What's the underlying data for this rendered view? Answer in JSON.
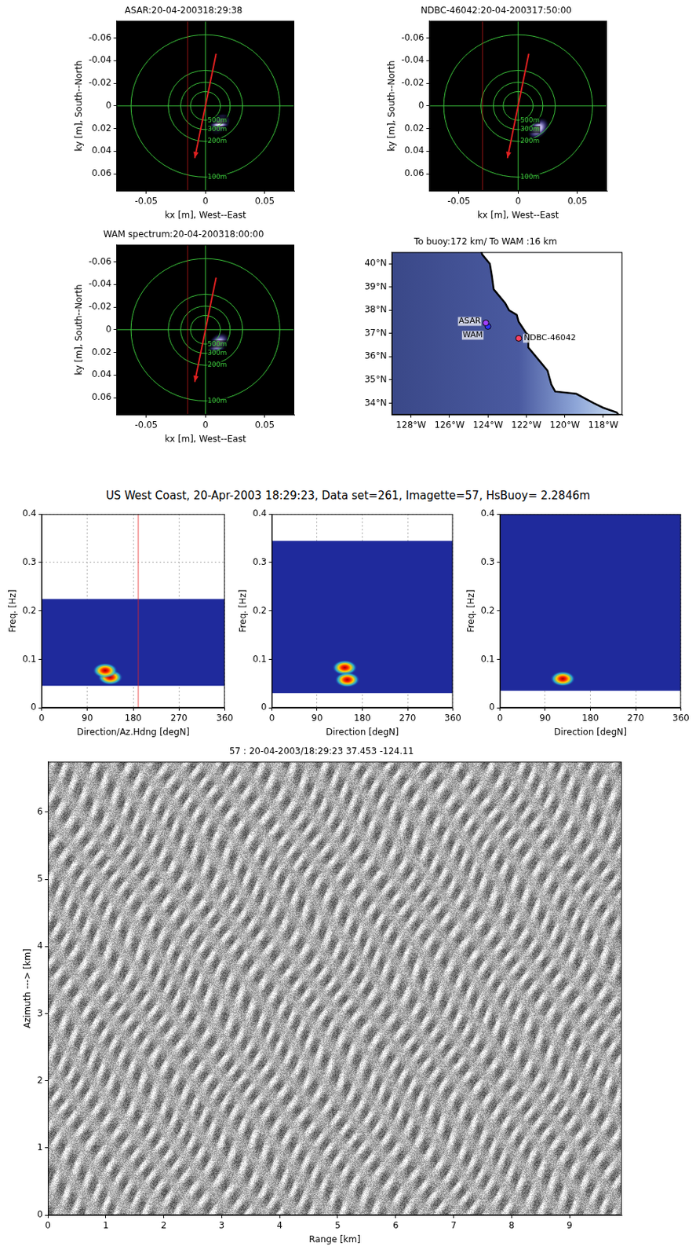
{
  "suptitle": "US West Coast, 20-Apr-2003 18:29:23, Data set=261, Imagette=57, HsBuoy= 2.2846m",
  "chart_data": [
    {
      "type": "spectrum2d",
      "title": "ASAR:20-04-200318:29:38",
      "xlabel": "kx [m], West--East",
      "ylabel": "ky [m], South--North",
      "xlim": [
        -0.075,
        0.075
      ],
      "ylim": [
        0.075,
        -0.075
      ],
      "xticks": [
        -0.05,
        0,
        0.05
      ],
      "yticks": [
        -0.06,
        -0.04,
        -0.02,
        0,
        0.02,
        0.04,
        0.06
      ],
      "grid": false,
      "circles": [
        {
          "radius": 0.0126,
          "label": "500m"
        },
        {
          "radius": 0.0209,
          "label": "300m"
        },
        {
          "radius": 0.0314,
          "label": "200m"
        },
        {
          "radius": 0.0628,
          "label": "100m"
        }
      ],
      "peaks": [
        {
          "x": 0.012,
          "y": 0.016
        }
      ],
      "arrow": {
        "x": [
          0.009,
          -0.009
        ],
        "y": [
          -0.046,
          0.046
        ],
        "color": "#e02020"
      },
      "line_x": -0.015
    },
    {
      "type": "spectrum2d",
      "title": "NDBC-46042:20-04-200317:50:00",
      "xlabel": "kx [m], West--East",
      "ylabel": "ky [m], South--North",
      "xlim": [
        -0.075,
        0.075
      ],
      "ylim": [
        0.075,
        -0.075
      ],
      "xticks": [
        -0.05,
        0,
        0.05
      ],
      "yticks": [
        -0.06,
        -0.04,
        -0.02,
        0,
        0.02,
        0.04,
        0.06
      ],
      "grid": false,
      "circles": [
        {
          "radius": 0.0126,
          "label": "500m"
        },
        {
          "radius": 0.0209,
          "label": "300m"
        },
        {
          "radius": 0.0314,
          "label": "200m"
        },
        {
          "radius": 0.0628,
          "label": "100m"
        }
      ],
      "peaks": [
        {
          "x": 0.017,
          "y": 0.02
        }
      ],
      "arrow": {
        "x": [
          0.009,
          -0.009
        ],
        "y": [
          -0.046,
          0.046
        ],
        "color": "#e02020"
      },
      "line_x": -0.03
    },
    {
      "type": "spectrum2d",
      "title": "WAM spectrum:20-04-200318:00:00",
      "xlabel": "kx [m], West--East",
      "ylabel": "ky [m], South--North",
      "xlim": [
        -0.075,
        0.075
      ],
      "ylim": [
        0.075,
        -0.075
      ],
      "xticks": [
        -0.05,
        0,
        0.05
      ],
      "yticks": [
        -0.06,
        -0.04,
        -0.02,
        0,
        0.02,
        0.04,
        0.06
      ],
      "grid": false,
      "circles": [
        {
          "radius": 0.0126,
          "label": "500m"
        },
        {
          "radius": 0.0209,
          "label": "300m"
        },
        {
          "radius": 0.0314,
          "label": "200m"
        },
        {
          "radius": 0.0628,
          "label": "100m"
        }
      ],
      "peaks": [
        {
          "x": 0.011,
          "y": 0.012
        }
      ],
      "arrow": {
        "x": [
          0.009,
          -0.009
        ],
        "y": [
          -0.046,
          0.046
        ],
        "color": "#e02020"
      },
      "line_x": -0.015
    },
    {
      "type": "map",
      "title": "To buoy:172 km/ To WAM :16 km",
      "xlim": [
        -129,
        -117
      ],
      "ylim": [
        33.5,
        40.5
      ],
      "xticks": [
        {
          "value": -128,
          "label": "128°W"
        },
        {
          "value": -126,
          "label": "126°W"
        },
        {
          "value": -124,
          "label": "124°W"
        },
        {
          "value": -122,
          "label": "122°W"
        },
        {
          "value": -120,
          "label": "120°W"
        },
        {
          "value": -118,
          "label": "118°W"
        }
      ],
      "yticks": [
        {
          "value": 34,
          "label": "34°N"
        },
        {
          "value": 35,
          "label": "35°N"
        },
        {
          "value": 36,
          "label": "36°N"
        },
        {
          "value": 37,
          "label": "37°N"
        },
        {
          "value": 38,
          "label": "38°N"
        },
        {
          "value": 39,
          "label": "39°N"
        },
        {
          "value": 40,
          "label": "40°N"
        }
      ],
      "grid": false,
      "coastline": {
        "color": "#000000",
        "x": [
          -117.1,
          -117.3,
          -118.0,
          -118.5,
          -119.4,
          -120.5,
          -120.7,
          -120.9,
          -121.3,
          -121.9,
          -121.9,
          -121.8,
          -122.0,
          -122.4,
          -122.5,
          -122.9,
          -123.1,
          -123.7,
          -123.8,
          -123.9,
          -124.3,
          -124.4
        ],
        "y": [
          33.4,
          33.6,
          33.8,
          34.0,
          34.4,
          34.5,
          34.8,
          35.4,
          35.8,
          36.4,
          36.6,
          36.9,
          37.0,
          37.5,
          37.8,
          38.0,
          38.3,
          38.9,
          39.5,
          40.0,
          40.4,
          40.7
        ]
      },
      "points": [
        {
          "name": "NDBC-46042",
          "x": -122.4,
          "y": 36.79,
          "color": "#ff4060"
        },
        {
          "name": "ASAR",
          "x": -124.11,
          "y": 37.453,
          "color": "#a040ff"
        },
        {
          "name": "WAM",
          "x": -124.0,
          "y": 37.3,
          "color": "#3030ff"
        }
      ]
    },
    {
      "type": "spectrum",
      "xlabel": "Direction/Az.Hdng [degN]",
      "ylabel": "Freq. [Hz]",
      "xlim": [
        0,
        360
      ],
      "ylim": [
        0,
        0.4
      ],
      "xticks": [
        0,
        90,
        180,
        270,
        360
      ],
      "yticks": [
        0,
        0.1,
        0.2,
        0.3,
        0.4
      ],
      "grid": true,
      "domain": {
        "x": [
          0,
          360
        ],
        "y": [
          0.045,
          0.225
        ]
      },
      "peaks": [
        {
          "x": 135,
          "y": 0.063
        },
        {
          "x": 125,
          "y": 0.077
        }
      ],
      "line_x": 190
    },
    {
      "type": "spectrum",
      "xlabel": "Direction [degN]",
      "ylabel": "Freq. [Hz]",
      "xlim": [
        0,
        360
      ],
      "ylim": [
        0,
        0.4
      ],
      "xticks": [
        0,
        90,
        180,
        270,
        360
      ],
      "yticks": [
        0,
        0.1,
        0.2,
        0.3,
        0.4
      ],
      "grid": true,
      "domain": {
        "x": [
          0,
          360
        ],
        "y": [
          0.03,
          0.345
        ]
      },
      "peaks": [
        {
          "x": 145,
          "y": 0.083
        },
        {
          "x": 150,
          "y": 0.058
        }
      ]
    },
    {
      "type": "spectrum",
      "xlabel": "Direction [degN]",
      "ylabel": "Freq. [Hz]",
      "xlim": [
        0,
        360
      ],
      "ylim": [
        0,
        0.4
      ],
      "xticks": [
        0,
        90,
        180,
        270,
        360
      ],
      "yticks": [
        0,
        0.1,
        0.2,
        0.3,
        0.4
      ],
      "grid": true,
      "domain": {
        "x": [
          0,
          360
        ],
        "y": [
          0.035,
          0.4
        ]
      },
      "peaks": [
        {
          "x": 125,
          "y": 0.06
        }
      ]
    },
    {
      "type": "image",
      "title": "57 : 20-04-2003/18:29:23 37.453 -124.11",
      "xlabel": "Range [km]",
      "ylabel": "Azimuth ---> [km]",
      "xlim": [
        0,
        9.9
      ],
      "ylim": [
        0,
        6.75
      ],
      "xticks": [
        0,
        1,
        2,
        3,
        4,
        5,
        6,
        7,
        8,
        9
      ],
      "yticks": [
        0,
        1,
        2,
        3,
        4,
        5,
        6
      ],
      "grid": false
    }
  ]
}
